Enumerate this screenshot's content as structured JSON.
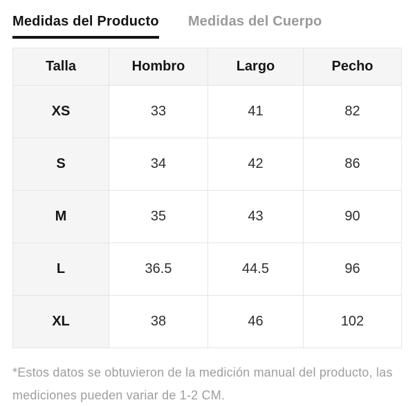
{
  "tabs": [
    {
      "label": "Medidas del Producto",
      "active": true
    },
    {
      "label": "Medidas del Cuerpo",
      "active": false
    }
  ],
  "table": {
    "columns": [
      "Talla",
      "Hombro",
      "Largo",
      "Pecho"
    ],
    "rows": [
      {
        "talla": "XS",
        "values": [
          "33",
          "41",
          "82"
        ]
      },
      {
        "talla": "S",
        "values": [
          "34",
          "42",
          "86"
        ]
      },
      {
        "talla": "M",
        "values": [
          "35",
          "43",
          "90"
        ]
      },
      {
        "talla": "L",
        "values": [
          "36.5",
          "44.5",
          "96"
        ]
      },
      {
        "talla": "XL",
        "values": [
          "38",
          "46",
          "102"
        ]
      }
    ]
  },
  "footnote": "*Estos datos se obtuvieron de la medición manual del producto, las mediciones pueden variar de 1-2 CM.",
  "colors": {
    "active_tab": "#141414",
    "inactive_tab": "#9a9a9a",
    "tab_underline": "#141414",
    "header_bg": "#f5f5f6",
    "border": "#e4e4e4",
    "cell_text": "#2e2e2e",
    "footnote_text": "#9e9e9e",
    "background": "#ffffff"
  }
}
